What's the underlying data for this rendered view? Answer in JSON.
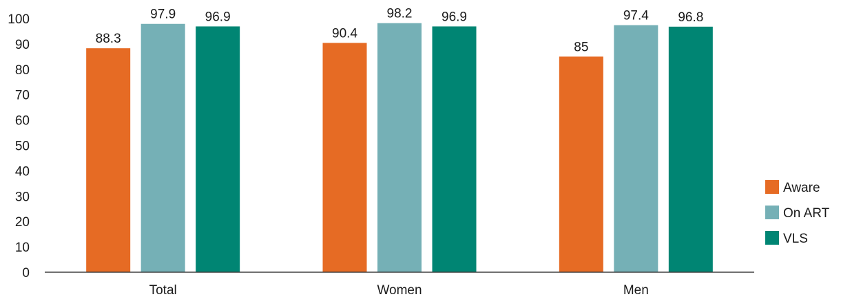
{
  "chart_data": {
    "type": "bar",
    "categories": [
      "Total",
      "Women",
      "Men"
    ],
    "series": [
      {
        "name": "Aware",
        "values": [
          88.3,
          90.4,
          85
        ],
        "color": "#e66b24"
      },
      {
        "name": "On ART",
        "values": [
          97.9,
          98.2,
          97.4
        ],
        "color": "#75b0b6"
      },
      {
        "name": "VLS",
        "values": [
          96.9,
          96.9,
          96.8
        ],
        "color": "#008573"
      }
    ],
    "data_labels": [
      [
        "88.3",
        "90.4",
        "85"
      ],
      [
        "97.9",
        "98.2",
        "97.4"
      ],
      [
        "96.9",
        "96.9",
        "96.8"
      ]
    ],
    "yticks": [
      "0",
      "10",
      "20",
      "30",
      "40",
      "50",
      "60",
      "70",
      "80",
      "90",
      "100"
    ],
    "ylim": [
      0,
      100
    ],
    "grid": false,
    "legend_position": "right"
  }
}
